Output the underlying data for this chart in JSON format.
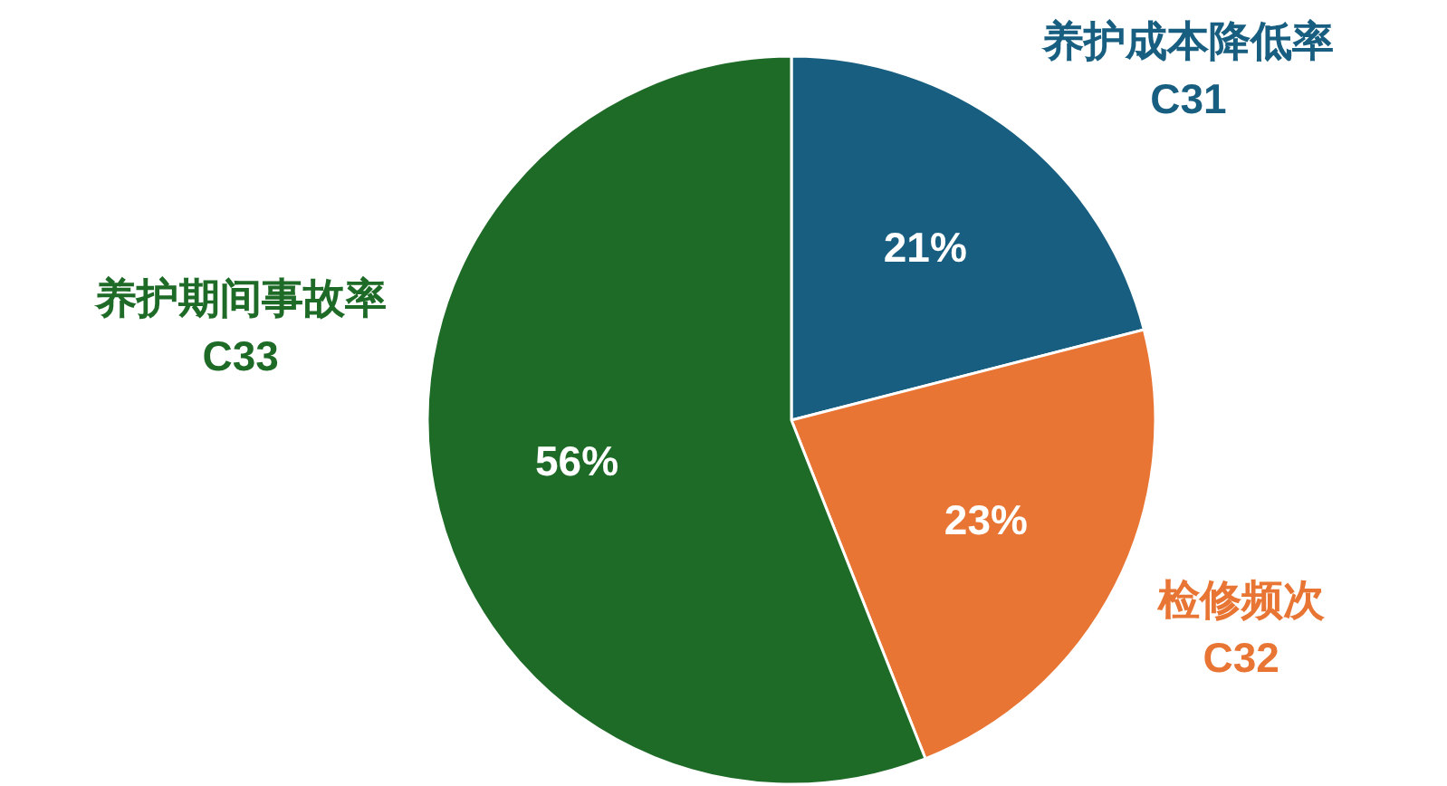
{
  "chart_data": {
    "type": "pie",
    "categories": [
      "养护成本降低率\nC31",
      "检修频次\nC32",
      "养护期间事故率\nC33"
    ],
    "values": [
      21,
      23,
      56
    ],
    "colors": [
      "#175e80",
      "#e87533",
      "#1e6b27"
    ],
    "value_labels": [
      "21%",
      "23%",
      "56%"
    ],
    "legend": false
  }
}
